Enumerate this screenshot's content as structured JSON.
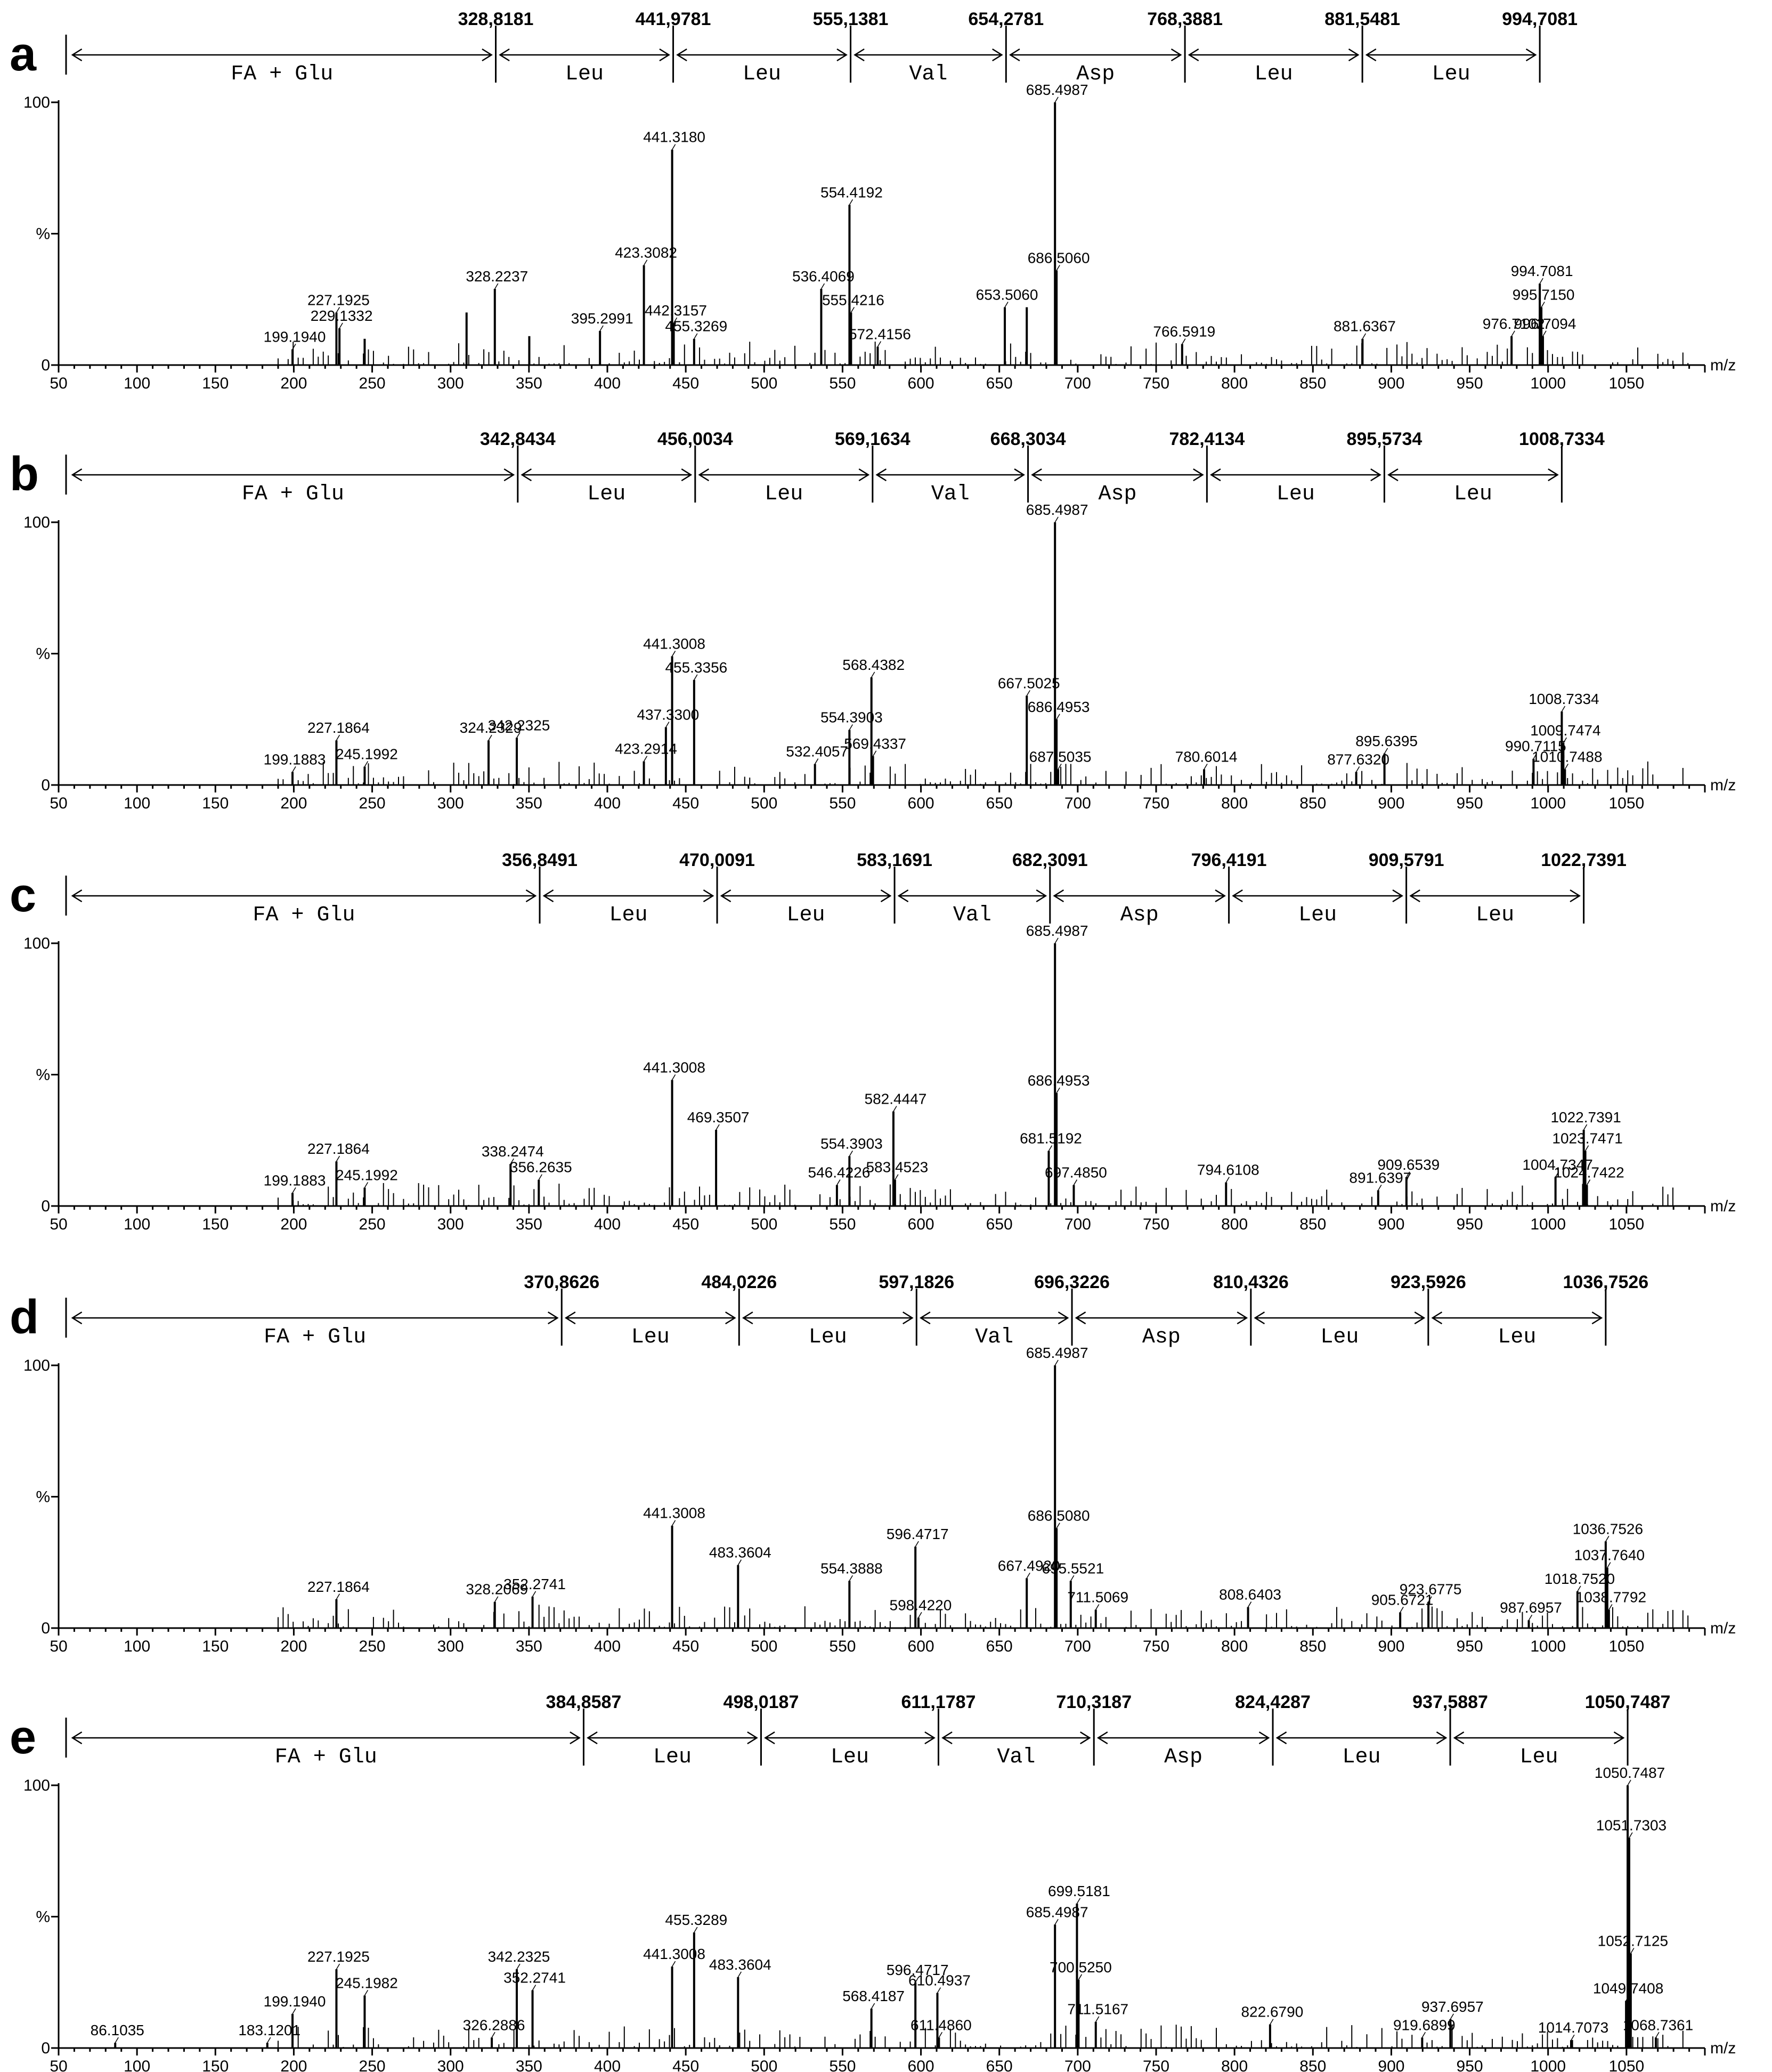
{
  "x_axis": {
    "min": 50,
    "max": 1100,
    "step": 50,
    "ticks": [
      "50",
      "100",
      "150",
      "200",
      "250",
      "300",
      "350",
      "400",
      "450",
      "500",
      "550",
      "600",
      "650",
      "700",
      "750",
      "800",
      "850",
      "900",
      "950",
      "1000",
      "1050"
    ],
    "unit": "m/z"
  },
  "y_axis": {
    "top_label": "100",
    "mid_label": "%",
    "zero_label": "0"
  },
  "chart_data": [
    {
      "type": "bar",
      "panel": "a",
      "xlabel": "m/z",
      "ylabel": "%",
      "xlim": [
        50,
        1100
      ],
      "ylim": [
        0,
        100
      ],
      "fragment_ions": [
        "328,8181",
        "441,9781",
        "555,1381",
        "654,2781",
        "768,3881",
        "881,5481",
        "994,7081"
      ],
      "fragment_mz": [
        328.8181,
        441.9781,
        555.1381,
        654.2781,
        768.3881,
        881.5481,
        994.7081
      ],
      "residues": [
        "FA + Glu",
        "Leu",
        "Leu",
        "Val",
        "Asp",
        "Leu",
        "Leu"
      ],
      "peaks": [
        {
          "mz": 199.194,
          "intensity": 6,
          "label": "199.1940"
        },
        {
          "mz": 227.1925,
          "intensity": 20,
          "label": "227.1925"
        },
        {
          "mz": 229.1332,
          "intensity": 14,
          "label": "229.1332"
        },
        {
          "mz": 245.2,
          "intensity": 10
        },
        {
          "mz": 310.2,
          "intensity": 20
        },
        {
          "mz": 328.2237,
          "intensity": 29,
          "label": "328.2237"
        },
        {
          "mz": 350.2,
          "intensity": 11
        },
        {
          "mz": 395.2991,
          "intensity": 13,
          "label": "395.2991"
        },
        {
          "mz": 423.3082,
          "intensity": 38,
          "label": "423.3082"
        },
        {
          "mz": 441.318,
          "intensity": 82,
          "label": "441.3180"
        },
        {
          "mz": 442.3157,
          "intensity": 16,
          "label": "442.3157"
        },
        {
          "mz": 455.3269,
          "intensity": 10,
          "label": "455.3269"
        },
        {
          "mz": 536.4069,
          "intensity": 29,
          "label": "536.4069"
        },
        {
          "mz": 554.4192,
          "intensity": 61,
          "label": "554.4192"
        },
        {
          "mz": 555.4216,
          "intensity": 20,
          "label": "555.4216"
        },
        {
          "mz": 572.4156,
          "intensity": 7,
          "label": "572.4156"
        },
        {
          "mz": 653.506,
          "intensity": 22,
          "label": "653.5060"
        },
        {
          "mz": 667.5,
          "intensity": 22
        },
        {
          "mz": 685.4987,
          "intensity": 100,
          "label": "685.4987"
        },
        {
          "mz": 686.506,
          "intensity": 36,
          "label": "686.5060"
        },
        {
          "mz": 766.5919,
          "intensity": 8,
          "label": "766.5919"
        },
        {
          "mz": 881.6367,
          "intensity": 10,
          "label": "881.6367"
        },
        {
          "mz": 976.7102,
          "intensity": 11,
          "label": "976.7102"
        },
        {
          "mz": 994.7081,
          "intensity": 31,
          "label": "994.7081"
        },
        {
          "mz": 995.715,
          "intensity": 22,
          "label": "995.7150"
        },
        {
          "mz": 996.7094,
          "intensity": 11,
          "label": "996.7094"
        }
      ]
    },
    {
      "type": "bar",
      "panel": "b",
      "xlabel": "m/z",
      "ylabel": "%",
      "xlim": [
        50,
        1100
      ],
      "ylim": [
        0,
        100
      ],
      "fragment_ions": [
        "342,8434",
        "456,0034",
        "569,1634",
        "668,3034",
        "782,4134",
        "895,5734",
        "1008,7334"
      ],
      "fragment_mz": [
        342.8434,
        456.0034,
        569.1634,
        668.3034,
        782.4134,
        895.5734,
        1008.7334
      ],
      "residues": [
        "FA + Glu",
        "Leu",
        "Leu",
        "Val",
        "Asp",
        "Leu",
        "Leu"
      ],
      "peaks": [
        {
          "mz": 199.1883,
          "intensity": 5,
          "label": "199.1883"
        },
        {
          "mz": 227.1864,
          "intensity": 17,
          "label": "227.1864"
        },
        {
          "mz": 245.1992,
          "intensity": 7,
          "label": "245.1992"
        },
        {
          "mz": 324.2329,
          "intensity": 17,
          "label": "324.2329"
        },
        {
          "mz": 342.2325,
          "intensity": 18,
          "label": "342.2325"
        },
        {
          "mz": 423.2914,
          "intensity": 9,
          "label": "423.2914"
        },
        {
          "mz": 437.33,
          "intensity": 22,
          "label": "437.3300"
        },
        {
          "mz": 441.3008,
          "intensity": 49,
          "label": "441.3008"
        },
        {
          "mz": 455.3356,
          "intensity": 40,
          "label": "455.3356"
        },
        {
          "mz": 532.4057,
          "intensity": 8,
          "label": "532.4057"
        },
        {
          "mz": 554.3903,
          "intensity": 21,
          "label": "554.3903"
        },
        {
          "mz": 568.4382,
          "intensity": 41,
          "label": "568.4382"
        },
        {
          "mz": 569.4337,
          "intensity": 11,
          "label": "569.4337"
        },
        {
          "mz": 667.5025,
          "intensity": 34,
          "label": "667.5025"
        },
        {
          "mz": 685.4987,
          "intensity": 100,
          "label": "685.4987"
        },
        {
          "mz": 686.4953,
          "intensity": 25,
          "label": "686.4953"
        },
        {
          "mz": 687.5035,
          "intensity": 6,
          "label": "687.5035"
        },
        {
          "mz": 780.6014,
          "intensity": 6,
          "label": "780.6014"
        },
        {
          "mz": 877.632,
          "intensity": 5,
          "label": "877.6320"
        },
        {
          "mz": 895.6395,
          "intensity": 12,
          "label": "895.6395"
        },
        {
          "mz": 990.7115,
          "intensity": 10,
          "label": "990.7115"
        },
        {
          "mz": 1008.7334,
          "intensity": 28,
          "label": "1008.7334"
        },
        {
          "mz": 1009.7474,
          "intensity": 16,
          "label": "1009.7474"
        },
        {
          "mz": 1010.7488,
          "intensity": 6,
          "label": "1010.7488"
        }
      ]
    },
    {
      "type": "bar",
      "panel": "c",
      "xlabel": "m/z",
      "ylabel": "%",
      "xlim": [
        50,
        1100
      ],
      "ylim": [
        0,
        100
      ],
      "fragment_ions": [
        "356,8491",
        "470,0091",
        "583,1691",
        "682,3091",
        "796,4191",
        "909,5791",
        "1022,7391"
      ],
      "fragment_mz": [
        356.8491,
        470.0091,
        583.1691,
        682.3091,
        796.4191,
        909.5791,
        1022.7391
      ],
      "residues": [
        "FA + Glu",
        "Leu",
        "Leu",
        "Val",
        "Asp",
        "Leu",
        "Leu"
      ],
      "peaks": [
        {
          "mz": 199.1883,
          "intensity": 5,
          "label": "199.1883"
        },
        {
          "mz": 227.1864,
          "intensity": 17,
          "label": "227.1864"
        },
        {
          "mz": 245.1992,
          "intensity": 7,
          "label": "245.1992"
        },
        {
          "mz": 338.2474,
          "intensity": 16,
          "label": "338.2474"
        },
        {
          "mz": 356.2635,
          "intensity": 10,
          "label": "356.2635"
        },
        {
          "mz": 441.3008,
          "intensity": 48,
          "label": "441.3008"
        },
        {
          "mz": 469.3507,
          "intensity": 29,
          "label": "469.3507"
        },
        {
          "mz": 546.4226,
          "intensity": 8,
          "label": "546.4226"
        },
        {
          "mz": 554.3903,
          "intensity": 19,
          "label": "554.3903"
        },
        {
          "mz": 582.4447,
          "intensity": 36,
          "label": "582.4447"
        },
        {
          "mz": 583.4523,
          "intensity": 10,
          "label": "583.4523"
        },
        {
          "mz": 681.5192,
          "intensity": 21,
          "label": "681.5192"
        },
        {
          "mz": 685.4987,
          "intensity": 100,
          "label": "685.4987"
        },
        {
          "mz": 686.4953,
          "intensity": 43,
          "label": "686.4953"
        },
        {
          "mz": 697.485,
          "intensity": 8,
          "label": "697.4850"
        },
        {
          "mz": 794.6108,
          "intensity": 9,
          "label": "794.6108"
        },
        {
          "mz": 891.6397,
          "intensity": 6,
          "label": "891.6397"
        },
        {
          "mz": 909.6539,
          "intensity": 11,
          "label": "909.6539"
        },
        {
          "mz": 1004.7347,
          "intensity": 11,
          "label": "1004.7347"
        },
        {
          "mz": 1022.7391,
          "intensity": 29,
          "label": "1022.7391"
        },
        {
          "mz": 1023.7471,
          "intensity": 21,
          "label": "1023.7471"
        },
        {
          "mz": 1024.7422,
          "intensity": 8,
          "label": "1024.7422"
        }
      ]
    },
    {
      "type": "bar",
      "panel": "d",
      "xlabel": "m/z",
      "ylabel": "%",
      "xlim": [
        50,
        1100
      ],
      "ylim": [
        0,
        100
      ],
      "fragment_ions": [
        "370,8626",
        "484,0226",
        "597,1826",
        "696,3226",
        "810,4326",
        "923,5926",
        "1036,7526"
      ],
      "fragment_mz": [
        370.8626,
        484.0226,
        597.1826,
        696.3226,
        810.4326,
        923.5926,
        1036.7526
      ],
      "residues": [
        "FA + Glu",
        "Leu",
        "Leu",
        "Val",
        "Asp",
        "Leu",
        "Leu"
      ],
      "peaks": [
        {
          "mz": 227.1864,
          "intensity": 11,
          "label": "227.1864"
        },
        {
          "mz": 328.2069,
          "intensity": 10,
          "label": "328.2069"
        },
        {
          "mz": 352.2741,
          "intensity": 12,
          "label": "352.2741"
        },
        {
          "mz": 441.3008,
          "intensity": 39,
          "label": "441.3008"
        },
        {
          "mz": 483.3604,
          "intensity": 24,
          "label": "483.3604"
        },
        {
          "mz": 554.3888,
          "intensity": 18,
          "label": "554.3888"
        },
        {
          "mz": 596.4717,
          "intensity": 31,
          "label": "596.4717"
        },
        {
          "mz": 598.422,
          "intensity": 4,
          "label": "598.4220"
        },
        {
          "mz": 667.492,
          "intensity": 19,
          "label": "667.4920"
        },
        {
          "mz": 685.4987,
          "intensity": 100,
          "label": "685.4987"
        },
        {
          "mz": 686.508,
          "intensity": 38,
          "label": "686.5080"
        },
        {
          "mz": 695.5521,
          "intensity": 18,
          "label": "695.5521"
        },
        {
          "mz": 711.5069,
          "intensity": 7,
          "label": "711.5069"
        },
        {
          "mz": 808.6403,
          "intensity": 8,
          "label": "808.6403"
        },
        {
          "mz": 905.6721,
          "intensity": 6,
          "label": "905.6721"
        },
        {
          "mz": 923.6775,
          "intensity": 10,
          "label": "923.6775"
        },
        {
          "mz": 987.6957,
          "intensity": 3,
          "label": "987.6957"
        },
        {
          "mz": 1018.752,
          "intensity": 14,
          "label": "1018.7520"
        },
        {
          "mz": 1036.7526,
          "intensity": 33,
          "label": "1036.7526"
        },
        {
          "mz": 1037.764,
          "intensity": 23,
          "label": "1037.7640"
        },
        {
          "mz": 1038.7792,
          "intensity": 7,
          "label": "1038.7792"
        }
      ]
    },
    {
      "type": "bar",
      "panel": "e",
      "xlabel": "m/z",
      "ylabel": "%",
      "xlim": [
        50,
        1100
      ],
      "ylim": [
        0,
        100
      ],
      "fragment_ions": [
        "384,8587",
        "498,0187",
        "611,1787",
        "710,3187",
        "824,4287",
        "937,5887",
        "1050,7487"
      ],
      "fragment_mz": [
        384.8587,
        498.0187,
        611.1787,
        710.3187,
        824.4287,
        937.5887,
        1050.7487
      ],
      "residues": [
        "FA + Glu",
        "Leu",
        "Leu",
        "Val",
        "Asp",
        "Leu",
        "Leu"
      ],
      "peaks": [
        {
          "mz": 86.1035,
          "intensity": 2,
          "label": "86.1035"
        },
        {
          "mz": 183.1201,
          "intensity": 2,
          "label": "183.1201"
        },
        {
          "mz": 199.194,
          "intensity": 13,
          "label": "199.1940"
        },
        {
          "mz": 227.1925,
          "intensity": 30,
          "label": "227.1925"
        },
        {
          "mz": 245.1982,
          "intensity": 20,
          "label": "245.1982"
        },
        {
          "mz": 326.2886,
          "intensity": 4,
          "label": "326.2886"
        },
        {
          "mz": 342.2325,
          "intensity": 30,
          "label": "342.2325"
        },
        {
          "mz": 352.2741,
          "intensity": 22,
          "label": "352.2741"
        },
        {
          "mz": 441.3008,
          "intensity": 31,
          "label": "441.3008"
        },
        {
          "mz": 455.3289,
          "intensity": 44,
          "label": "455.3289"
        },
        {
          "mz": 483.3604,
          "intensity": 27,
          "label": "483.3604"
        },
        {
          "mz": 568.4187,
          "intensity": 15,
          "label": "568.4187"
        },
        {
          "mz": 596.4717,
          "intensity": 25,
          "label": "596.4717"
        },
        {
          "mz": 610.4937,
          "intensity": 21,
          "label": "610.4937"
        },
        {
          "mz": 611.486,
          "intensity": 4,
          "label": "611.4860"
        },
        {
          "mz": 685.4987,
          "intensity": 47,
          "label": "685.4987"
        },
        {
          "mz": 699.5181,
          "intensity": 55,
          "label": "699.5181"
        },
        {
          "mz": 700.525,
          "intensity": 26,
          "label": "700.5250"
        },
        {
          "mz": 711.5167,
          "intensity": 10,
          "label": "711.5167"
        },
        {
          "mz": 822.679,
          "intensity": 9,
          "label": "822.6790"
        },
        {
          "mz": 919.6899,
          "intensity": 4,
          "label": "919.6899"
        },
        {
          "mz": 937.6957,
          "intensity": 11,
          "label": "937.6957"
        },
        {
          "mz": 1014.7073,
          "intensity": 3,
          "label": "1014.7073"
        },
        {
          "mz": 1049.7408,
          "intensity": 18,
          "label": "1049.7408"
        },
        {
          "mz": 1050.7487,
          "intensity": 100,
          "label": "1050.7487"
        },
        {
          "mz": 1051.7303,
          "intensity": 80,
          "label": "1051.7303"
        },
        {
          "mz": 1052.7125,
          "intensity": 36,
          "label": "1052.7125"
        },
        {
          "mz": 1068.7361,
          "intensity": 4,
          "label": "1068.7361"
        }
      ]
    }
  ]
}
